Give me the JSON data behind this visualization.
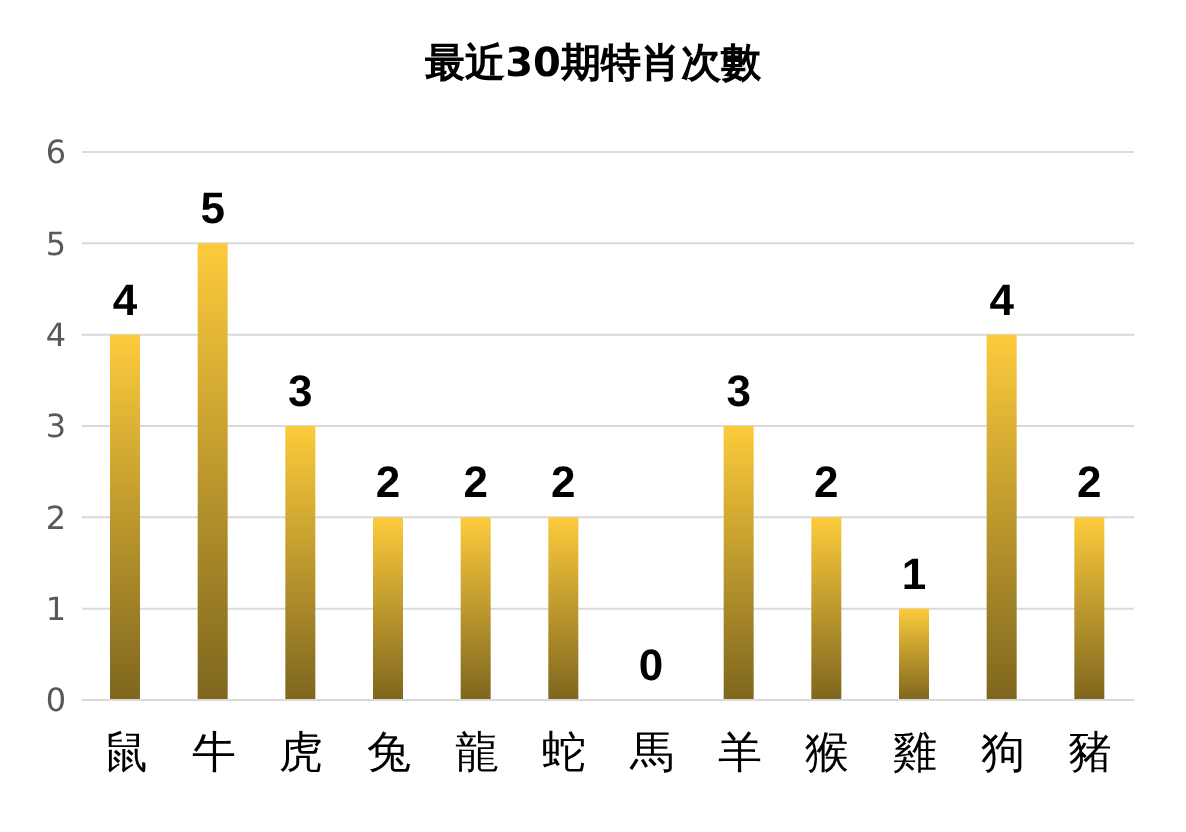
{
  "chart_data": {
    "type": "bar",
    "title": "最近30期特肖次數",
    "categories": [
      "鼠",
      "牛",
      "虎",
      "兔",
      "龍",
      "蛇",
      "馬",
      "羊",
      "猴",
      "雞",
      "狗",
      "豬"
    ],
    "values": [
      4,
      5,
      3,
      2,
      2,
      2,
      0,
      3,
      2,
      1,
      4,
      2
    ],
    "color": "#fccb3c",
    "ylim": [
      0,
      6
    ],
    "yticks": [
      0,
      1,
      2,
      3,
      4,
      5,
      6
    ],
    "grid": "y",
    "data_labels": true,
    "legend": false
  }
}
